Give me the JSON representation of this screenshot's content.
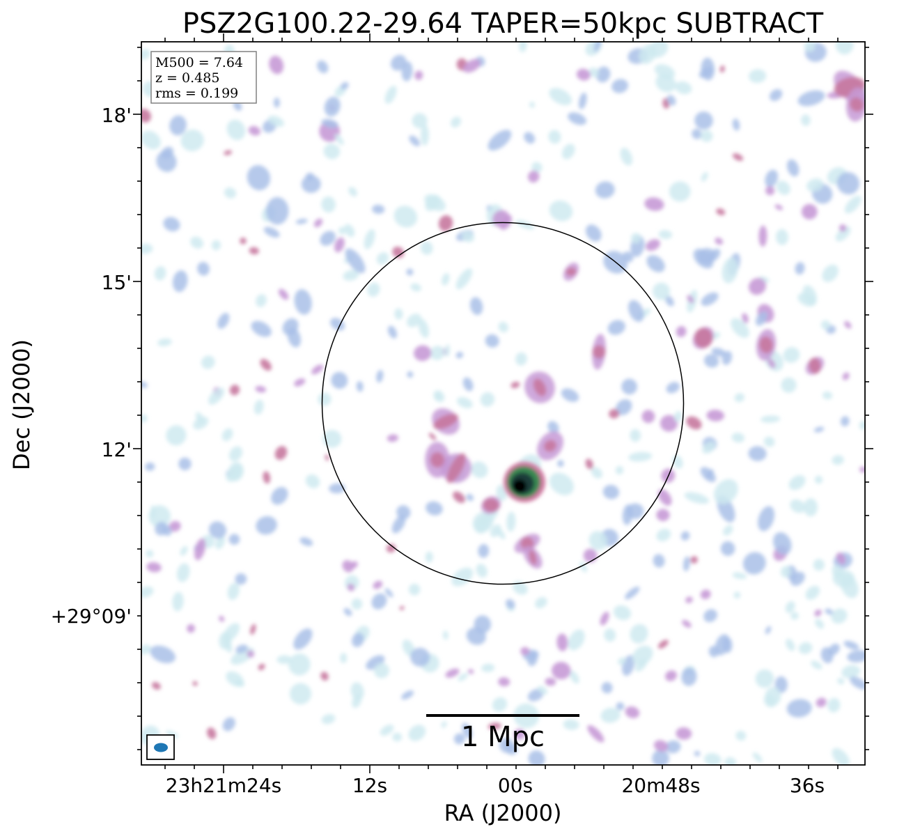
{
  "figure": {
    "title": "PSZ2G100.22-29.64 TAPER=50kpc SUBTRACT",
    "xlabel": "RA (J2000)",
    "ylabel": "Dec (J2000)",
    "x_ticks": [
      {
        "label": "23h21m24s"
      },
      {
        "label": "12s"
      },
      {
        "label": "00s"
      },
      {
        "label": "20m48s"
      },
      {
        "label": "36s"
      }
    ],
    "y_ticks": [
      {
        "label": "18'"
      },
      {
        "label": "15'"
      },
      {
        "label": "12'"
      },
      {
        "label": "+29°09'"
      }
    ],
    "info_box": {
      "lines": [
        "M500 = 7.64",
        "z = 0.485",
        "rms = 0.199"
      ]
    },
    "scale_bar": {
      "label": "1 Mpc"
    },
    "colors": {
      "noise_light": "#cfeaf0",
      "noise_blue": "#a9bfe8",
      "noise_violet": "#c79ad6",
      "noise_pink": "#c7789f",
      "source_green": "#2f7a4a",
      "source_dark": "#000000",
      "beam": "#1f77b4"
    }
  }
}
